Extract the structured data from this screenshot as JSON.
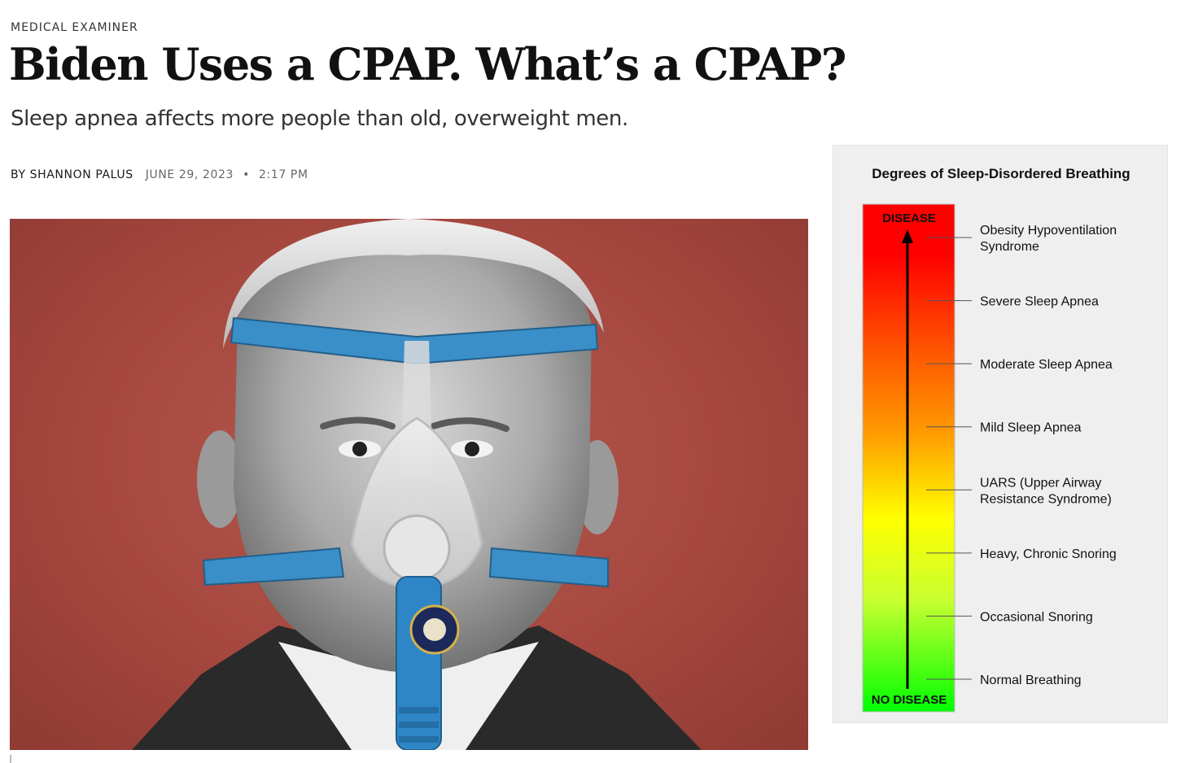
{
  "article": {
    "kicker": "MEDICAL EXAMINER",
    "headline": "Biden Uses a CPAP. What’s a CPAP?",
    "dek": "Sleep apnea affects more people than old, overweight men.",
    "byline": {
      "author": "BY SHANNON PALUS",
      "date": "JUNE 29, 2023",
      "separator": "•",
      "time": "2:17 PM"
    }
  },
  "photo": {
    "background_color": "#a6483f",
    "strap_color": "#3a8fc8",
    "tube_color": "#2f86c6"
  },
  "chart_data": {
    "type": "table",
    "title": "Degrees of Sleep-Disordered Breathing",
    "top_label": "DISEASE",
    "bottom_label": "NO DISEASE",
    "colors": {
      "top": "#ff0000",
      "middle": "#ffff00",
      "bottom": "#00ff00"
    },
    "levels": [
      {
        "label": "Obesity Hypoventilation Syndrome",
        "lines": [
          "Obesity Hypoventilation",
          "Syndrome"
        ]
      },
      {
        "label": "Severe Sleep Apnea",
        "lines": [
          "Severe Sleep Apnea"
        ]
      },
      {
        "label": "Moderate Sleep Apnea",
        "lines": [
          "Moderate Sleep Apnea"
        ]
      },
      {
        "label": "Mild Sleep Apnea",
        "lines": [
          "Mild Sleep Apnea"
        ]
      },
      {
        "label": "UARS (Upper Airway Resistance Syndrome)",
        "lines": [
          "UARS (Upper Airway",
          "Resistance Syndrome)"
        ]
      },
      {
        "label": "Heavy, Chronic Snoring",
        "lines": [
          "Heavy, Chronic Snoring"
        ]
      },
      {
        "label": "Occasional Snoring",
        "lines": [
          "Occasional Snoring"
        ]
      },
      {
        "label": "Normal Breathing",
        "lines": [
          "Normal Breathing"
        ]
      }
    ]
  }
}
